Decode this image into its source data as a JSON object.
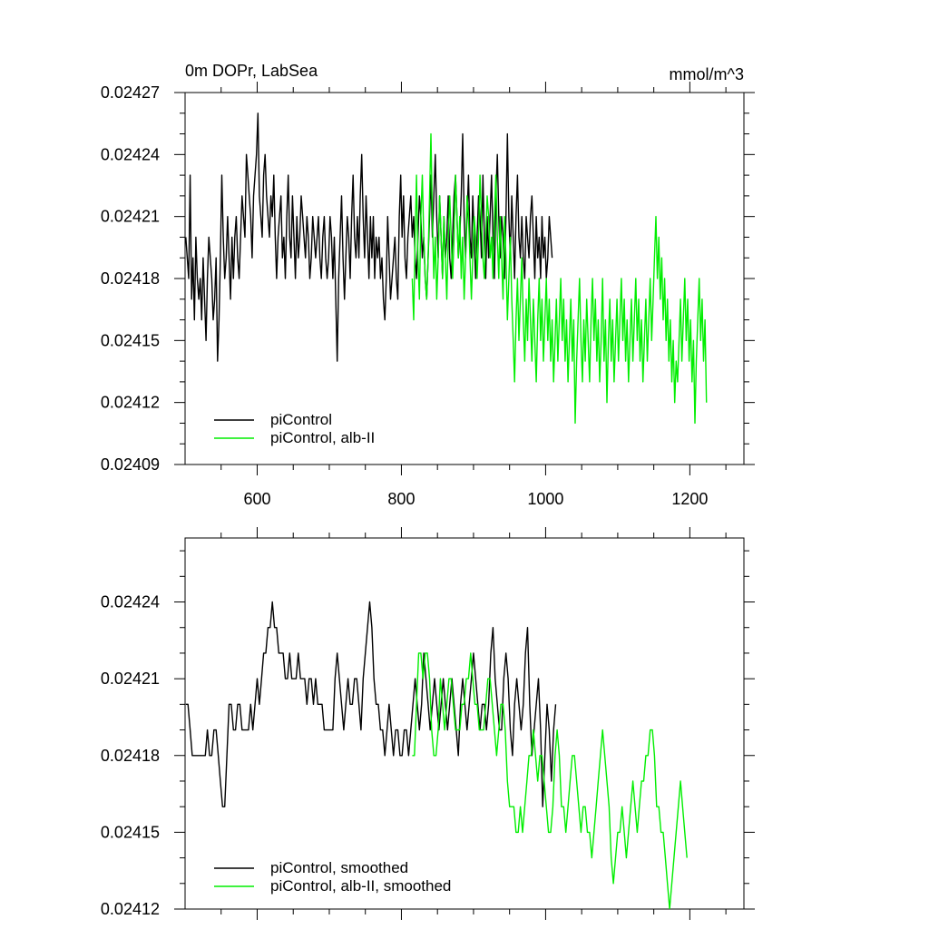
{
  "figure": {
    "title_left": "0m DOPr, LabSea",
    "title_right": "mmol/m^3"
  },
  "colors": {
    "picontrol": "#000000",
    "alb": "#00ee00"
  },
  "chart_data": [
    {
      "type": "line",
      "name": "top-panel",
      "title": "0m DOPr, LabSea",
      "units": "mmol/m^3",
      "xlim": [
        500,
        1275
      ],
      "ylim": [
        0.02409,
        0.02427
      ],
      "x_ticks": [
        600,
        800,
        1000,
        1200
      ],
      "y_ticks": [
        0.02409,
        0.02412,
        0.02415,
        0.02418,
        0.02421,
        0.02424,
        0.02427
      ],
      "y_tick_labels": [
        "0.02409",
        "0.02412",
        "0.02415",
        "0.02418",
        "0.02421",
        "0.02424",
        "0.02427"
      ],
      "x_tick_labels": [
        "600",
        "800",
        "1000",
        "1200"
      ],
      "legend": {
        "position": "bottom-left",
        "entries": [
          "piControl",
          "piControl, alb-II"
        ]
      },
      "series": [
        {
          "name": "piControl",
          "color": "#000000",
          "x_start": 501,
          "x_step": 2,
          "values": [
            0.0242,
            0.02419,
            0.02418,
            0.02423,
            0.02417,
            0.02419,
            0.02416,
            0.0242,
            0.02418,
            0.02417,
            0.02418,
            0.02416,
            0.02419,
            0.02417,
            0.02415,
            0.02418,
            0.0242,
            0.02419,
            0.02418,
            0.02416,
            0.02417,
            0.02419,
            0.02414,
            0.02416,
            0.02419,
            0.02423,
            0.0242,
            0.02418,
            0.02419,
            0.02421,
            0.02419,
            0.02417,
            0.0242,
            0.02418,
            0.0242,
            0.02421,
            0.02419,
            0.02418,
            0.0242,
            0.02422,
            0.02421,
            0.0242,
            0.02424,
            0.02423,
            0.02422,
            0.02421,
            0.02419,
            0.02422,
            0.02423,
            0.02424,
            0.02426,
            0.02422,
            0.02421,
            0.0242,
            0.02423,
            0.02424,
            0.02422,
            0.02421,
            0.0242,
            0.02422,
            0.02421,
            0.02423,
            0.0242,
            0.02418,
            0.0242,
            0.02421,
            0.02422,
            0.02419,
            0.0242,
            0.02418,
            0.02421,
            0.02423,
            0.0242,
            0.02419,
            0.02422,
            0.0242,
            0.02418,
            0.02421,
            0.02419,
            0.0242,
            0.02422,
            0.02421,
            0.0242,
            0.02419,
            0.02421,
            0.0242,
            0.02418,
            0.02419,
            0.02421,
            0.0242,
            0.02419,
            0.0242,
            0.02421,
            0.02419,
            0.02418,
            0.0242,
            0.02421,
            0.02419,
            0.02418,
            0.02419,
            0.02421,
            0.0242,
            0.02418,
            0.0242,
            0.02417,
            0.02414,
            0.02418,
            0.0242,
            0.02422,
            0.02419,
            0.02417,
            0.02419,
            0.02421,
            0.0242,
            0.02418,
            0.02421,
            0.02423,
            0.0242,
            0.02419,
            0.02421,
            0.02419,
            0.02422,
            0.02424,
            0.02421,
            0.02419,
            0.02422,
            0.0242,
            0.02418,
            0.02421,
            0.02419,
            0.02421,
            0.02418,
            0.0242,
            0.02419,
            0.0242,
            0.02418,
            0.02419,
            0.02417,
            0.02416,
            0.02418,
            0.02421,
            0.02419,
            0.02417,
            0.02418,
            0.02419,
            0.0242,
            0.02418,
            0.02417,
            0.02421,
            0.02423,
            0.0242,
            0.02422,
            0.02419,
            0.02418,
            0.0242,
            0.02421,
            0.02422,
            0.0242,
            0.02421,
            0.02419,
            0.02418,
            0.0242,
            0.02422,
            0.02421,
            0.02419,
            0.0242,
            0.02418,
            0.02417,
            0.02419,
            0.02421,
            0.02423,
            0.0242,
            0.02422,
            0.02424,
            0.02421,
            0.02419,
            0.02422,
            0.0242,
            0.02418,
            0.02421,
            0.02419,
            0.0242,
            0.02422,
            0.02419,
            0.02418,
            0.0242,
            0.02422,
            0.02423,
            0.02421,
            0.02419,
            0.0242,
            0.02422,
            0.02425,
            0.02421,
            0.02419,
            0.02421,
            0.02423,
            0.0242,
            0.02419,
            0.02422,
            0.0242,
            0.02418,
            0.0242,
            0.02422,
            0.02421,
            0.02419,
            0.02423,
            0.0242,
            0.02418,
            0.02421,
            0.02419,
            0.02421,
            0.02423,
            0.0242,
            0.02418,
            0.02422,
            0.02424,
            0.02421,
            0.02419,
            0.02421,
            0.0242,
            0.02418,
            0.02421,
            0.02425,
            0.02421,
            0.02419,
            0.02422,
            0.0242,
            0.02418,
            0.02421,
            0.02423,
            0.0242,
            0.02419,
            0.02421,
            0.02419,
            0.02418,
            0.02421,
            0.0242,
            0.02419,
            0.02421,
            0.02422,
            0.0242,
            0.02418,
            0.02421,
            0.02419,
            0.0242,
            0.02418,
            0.02421,
            0.02419,
            0.0242,
            0.02418,
            0.02419,
            0.02421,
            0.0242,
            0.02419
          ]
        },
        {
          "name": "piControl, alb-II",
          "color": "#00ee00",
          "x_start": 815,
          "x_step": 2,
          "values": [
            0.02418,
            0.02416,
            0.0242,
            0.02423,
            0.02419,
            0.02417,
            0.02421,
            0.02423,
            0.0242,
            0.02418,
            0.02417,
            0.02419,
            0.02422,
            0.02425,
            0.02421,
            0.02418,
            0.0242,
            0.02417,
            0.02419,
            0.02422,
            0.0242,
            0.02418,
            0.02421,
            0.02419,
            0.02417,
            0.0242,
            0.02422,
            0.0242,
            0.02418,
            0.0242,
            0.02423,
            0.02421,
            0.02419,
            0.02421,
            0.02418,
            0.0242,
            0.02417,
            0.02419,
            0.02422,
            0.02421,
            0.02419,
            0.02417,
            0.02419,
            0.02421,
            0.0242,
            0.02418,
            0.0242,
            0.02423,
            0.02421,
            0.02419,
            0.02418,
            0.0242,
            0.02422,
            0.02421,
            0.02419,
            0.0242,
            0.02418,
            0.02421,
            0.02423,
            0.0242,
            0.02418,
            0.02421,
            0.02419,
            0.02417,
            0.02421,
            0.02419,
            0.02416,
            0.02418,
            0.0242,
            0.02417,
            0.02415,
            0.02413,
            0.02416,
            0.02418,
            0.02415,
            0.02417,
            0.02419,
            0.02416,
            0.02414,
            0.02417,
            0.02415,
            0.02418,
            0.02416,
            0.02414,
            0.02417,
            0.02415,
            0.02413,
            0.02416,
            0.02418,
            0.02415,
            0.02417,
            0.02414,
            0.02416,
            0.02418,
            0.02415,
            0.02417,
            0.02414,
            0.02416,
            0.02413,
            0.02415,
            0.02417,
            0.02414,
            0.02416,
            0.02418,
            0.02415,
            0.02417,
            0.02414,
            0.02416,
            0.02413,
            0.02415,
            0.02417,
            0.02414,
            0.02416,
            0.02411,
            0.02414,
            0.02416,
            0.02418,
            0.02415,
            0.02413,
            0.02416,
            0.02414,
            0.02417,
            0.02415,
            0.02413,
            0.02416,
            0.02418,
            0.02415,
            0.02417,
            0.02414,
            0.02416,
            0.02413,
            0.02415,
            0.02418,
            0.02414,
            0.02416,
            0.02412,
            0.02415,
            0.02417,
            0.02414,
            0.02416,
            0.02413,
            0.02415,
            0.02417,
            0.02414,
            0.02416,
            0.02418,
            0.02415,
            0.02417,
            0.02414,
            0.02416,
            0.02413,
            0.02415,
            0.02417,
            0.02414,
            0.02416,
            0.02418,
            0.02415,
            0.02417,
            0.02414,
            0.02416,
            0.02413,
            0.02415,
            0.02417,
            0.02414,
            0.02416,
            0.02418,
            0.02415,
            0.02417,
            0.02419,
            0.02421,
            0.02418,
            0.0242,
            0.02417,
            0.02419,
            0.02416,
            0.02418,
            0.02415,
            0.02417,
            0.02414,
            0.02416,
            0.02413,
            0.02415,
            0.02412,
            0.02414,
            0.02413,
            0.02415,
            0.02417,
            0.02414,
            0.02416,
            0.02418,
            0.02415,
            0.02417,
            0.02414,
            0.02416,
            0.02413,
            0.02415,
            0.02411,
            0.02414,
            0.02416,
            0.02418,
            0.02415,
            0.02417,
            0.02414,
            0.02416,
            0.02412
          ]
        }
      ]
    },
    {
      "type": "line",
      "name": "bottom-panel",
      "xlim": [
        500,
        1275
      ],
      "ylim": [
        0.02412,
        0.024265
      ],
      "x_ticks": [
        600,
        800,
        1000,
        1200
      ],
      "y_ticks": [
        0.02412,
        0.02415,
        0.02418,
        0.02421,
        0.02424
      ],
      "y_tick_labels": [
        "0.02412",
        "0.02415",
        "0.02418",
        "0.02421",
        "0.02424"
      ],
      "legend": {
        "position": "bottom-left",
        "entries": [
          "piControl, smoothed",
          "piControl, alb-II, smoothed"
        ]
      },
      "series": [
        {
          "name": "piControl, smoothed",
          "color": "#000000",
          "x_start": 501,
          "x_step": 3,
          "values": [
            0.0242,
            0.0242,
            0.02419,
            0.02418,
            0.02418,
            0.02418,
            0.02418,
            0.02418,
            0.02418,
            0.02418,
            0.02419,
            0.02418,
            0.02418,
            0.02419,
            0.02419,
            0.02418,
            0.02417,
            0.02416,
            0.02416,
            0.02418,
            0.0242,
            0.0242,
            0.02419,
            0.02419,
            0.0242,
            0.0242,
            0.02419,
            0.02419,
            0.02419,
            0.02419,
            0.0242,
            0.02419,
            0.0242,
            0.02421,
            0.0242,
            0.02421,
            0.02422,
            0.02422,
            0.02423,
            0.02423,
            0.02424,
            0.02423,
            0.02423,
            0.02422,
            0.02422,
            0.02422,
            0.02421,
            0.02421,
            0.02422,
            0.02421,
            0.02421,
            0.02421,
            0.02422,
            0.02421,
            0.02421,
            0.02421,
            0.0242,
            0.02421,
            0.02421,
            0.0242,
            0.02421,
            0.0242,
            0.0242,
            0.0242,
            0.02419,
            0.02419,
            0.02419,
            0.02419,
            0.02419,
            0.02421,
            0.02422,
            0.02421,
            0.0242,
            0.02419,
            0.0242,
            0.02421,
            0.0242,
            0.0242,
            0.02421,
            0.02421,
            0.0242,
            0.02419,
            0.02421,
            0.02422,
            0.02423,
            0.02424,
            0.02423,
            0.02421,
            0.0242,
            0.0242,
            0.02419,
            0.02419,
            0.02418,
            0.02419,
            0.0242,
            0.02419,
            0.02418,
            0.02419,
            0.02419,
            0.02418,
            0.02418,
            0.02419,
            0.02419,
            0.02418,
            0.02419,
            0.0242,
            0.02421,
            0.0242,
            0.02419,
            0.0242,
            0.02422,
            0.02421,
            0.0242,
            0.02419,
            0.0242,
            0.02421,
            0.0242,
            0.02419,
            0.0242,
            0.02421,
            0.0242,
            0.02419,
            0.0242,
            0.02421,
            0.0242,
            0.02419,
            0.02418,
            0.0242,
            0.02421,
            0.0242,
            0.02419,
            0.0242,
            0.02421,
            0.02422,
            0.02421,
            0.0242,
            0.02419,
            0.0242,
            0.0242,
            0.02419,
            0.0242,
            0.02422,
            0.02423,
            0.02421,
            0.0242,
            0.02419,
            0.02419,
            0.02421,
            0.02422,
            0.02421,
            0.02419,
            0.02418,
            0.0242,
            0.02421,
            0.0242,
            0.02419,
            0.0242,
            0.02422,
            0.02423,
            0.0242,
            0.02418,
            0.02419,
            0.0242,
            0.02421,
            0.02419,
            0.02416,
            0.02418,
            0.0242,
            0.02419,
            0.02417,
            0.02419,
            0.0242
          ]
        },
        {
          "name": "piControl, alb-II, smoothed",
          "color": "#00ee00",
          "x_start": 815,
          "x_step": 3,
          "values": [
            0.02418,
            0.02418,
            0.0242,
            0.02422,
            0.02422,
            0.02421,
            0.02422,
            0.02422,
            0.02421,
            0.02419,
            0.02418,
            0.02418,
            0.02419,
            0.02421,
            0.0242,
            0.02419,
            0.0242,
            0.02421,
            0.02421,
            0.0242,
            0.02419,
            0.02419,
            0.02419,
            0.0242,
            0.0242,
            0.02421,
            0.02421,
            0.02422,
            0.02421,
            0.0242,
            0.0242,
            0.02419,
            0.02419,
            0.02419,
            0.0242,
            0.02421,
            0.02421,
            0.0242,
            0.02419,
            0.02418,
            0.02419,
            0.0242,
            0.0242,
            0.02419,
            0.02417,
            0.02416,
            0.02416,
            0.02416,
            0.02415,
            0.02415,
            0.02416,
            0.02415,
            0.02416,
            0.02417,
            0.02418,
            0.02418,
            0.02419,
            0.02418,
            0.02417,
            0.02418,
            0.02418,
            0.02417,
            0.02416,
            0.02415,
            0.02415,
            0.02416,
            0.02418,
            0.02419,
            0.02418,
            0.02416,
            0.02416,
            0.02415,
            0.02416,
            0.02417,
            0.02418,
            0.02418,
            0.02417,
            0.02416,
            0.02415,
            0.02416,
            0.02416,
            0.02415,
            0.02415,
            0.02414,
            0.02415,
            0.02416,
            0.02417,
            0.02418,
            0.02419,
            0.02418,
            0.02417,
            0.02416,
            0.02414,
            0.02413,
            0.02414,
            0.02415,
            0.02415,
            0.02416,
            0.02415,
            0.02414,
            0.02415,
            0.02416,
            0.02417,
            0.02416,
            0.02415,
            0.02416,
            0.02417,
            0.02417,
            0.02418,
            0.02418,
            0.02419,
            0.02419,
            0.02418,
            0.02416,
            0.02416,
            0.02415,
            0.02415,
            0.02414,
            0.02413,
            0.02412,
            0.02413,
            0.02414,
            0.02415,
            0.02416,
            0.02417,
            0.02416,
            0.02415,
            0.02414
          ]
        }
      ]
    }
  ]
}
